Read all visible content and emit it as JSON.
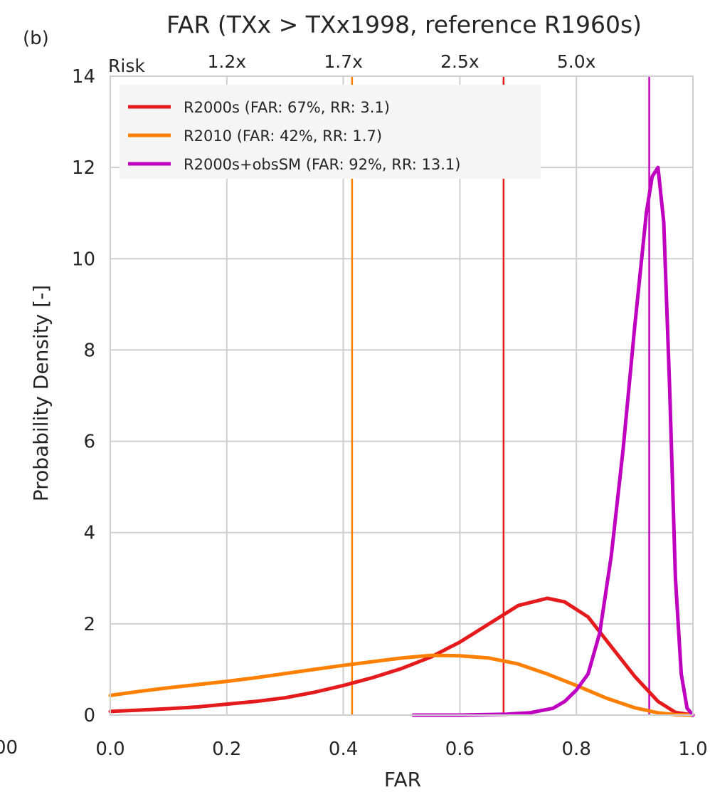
{
  "panel_label": "(b)",
  "chart_data": {
    "type": "line",
    "title": "FAR (TXx > TXx1998, reference R1960s)",
    "xlabel": "FAR",
    "ylabel": "Probability Density [-]",
    "xlim": [
      0.0,
      1.0
    ],
    "ylim": [
      0,
      14
    ],
    "grid": true,
    "legend_position": "top-left",
    "x_ticks": [
      {
        "value": 0.0,
        "label": "0.0"
      },
      {
        "value": 0.2,
        "label": "0.2"
      },
      {
        "value": 0.4,
        "label": "0.4"
      },
      {
        "value": 0.6,
        "label": "0.6"
      },
      {
        "value": 0.8,
        "label": "0.8"
      },
      {
        "value": 1.0,
        "label": "1.0"
      }
    ],
    "clipped_tick_label": "00",
    "y_ticks": [
      {
        "value": 0,
        "label": "0"
      },
      {
        "value": 2,
        "label": "2"
      },
      {
        "value": 4,
        "label": "4"
      },
      {
        "value": 6,
        "label": "6"
      },
      {
        "value": 8,
        "label": "8"
      },
      {
        "value": 10,
        "label": "10"
      },
      {
        "value": 12,
        "label": "12"
      },
      {
        "value": 14,
        "label": "14"
      }
    ],
    "top_axis": {
      "label": "Risk",
      "ticks": [
        {
          "far": 0.2,
          "label": "1.2x"
        },
        {
          "far": 0.4,
          "label": "1.7x"
        },
        {
          "far": 0.6,
          "label": "2.5x"
        },
        {
          "far": 0.8,
          "label": "5.0x"
        }
      ]
    },
    "series": [
      {
        "name": "R2000s (FAR: 67%, RR: 3.1)",
        "color": "#e41a1c",
        "vline": 0.675,
        "points": [
          [
            0.0,
            0.08
          ],
          [
            0.05,
            0.11
          ],
          [
            0.1,
            0.14
          ],
          [
            0.15,
            0.18
          ],
          [
            0.2,
            0.24
          ],
          [
            0.25,
            0.3
          ],
          [
            0.3,
            0.38
          ],
          [
            0.35,
            0.5
          ],
          [
            0.4,
            0.65
          ],
          [
            0.45,
            0.82
          ],
          [
            0.5,
            1.02
          ],
          [
            0.55,
            1.27
          ],
          [
            0.6,
            1.6
          ],
          [
            0.65,
            2.0
          ],
          [
            0.7,
            2.4
          ],
          [
            0.75,
            2.56
          ],
          [
            0.78,
            2.48
          ],
          [
            0.82,
            2.15
          ],
          [
            0.86,
            1.5
          ],
          [
            0.9,
            0.85
          ],
          [
            0.94,
            0.3
          ],
          [
            0.97,
            0.06
          ],
          [
            1.0,
            0.0
          ]
        ]
      },
      {
        "name": "R2010 (FAR: 42%, RR: 1.7)",
        "color": "#ff8000",
        "vline": 0.415,
        "points": [
          [
            0.0,
            0.43
          ],
          [
            0.05,
            0.52
          ],
          [
            0.1,
            0.6
          ],
          [
            0.15,
            0.67
          ],
          [
            0.2,
            0.74
          ],
          [
            0.25,
            0.82
          ],
          [
            0.3,
            0.91
          ],
          [
            0.35,
            1.0
          ],
          [
            0.4,
            1.09
          ],
          [
            0.45,
            1.17
          ],
          [
            0.5,
            1.25
          ],
          [
            0.55,
            1.31
          ],
          [
            0.6,
            1.3
          ],
          [
            0.65,
            1.25
          ],
          [
            0.7,
            1.12
          ],
          [
            0.75,
            0.9
          ],
          [
            0.8,
            0.65
          ],
          [
            0.85,
            0.38
          ],
          [
            0.9,
            0.16
          ],
          [
            0.94,
            0.05
          ],
          [
            0.97,
            0.01
          ],
          [
            1.0,
            0.0
          ]
        ]
      },
      {
        "name": "R2000s+obsSM (FAR: 92%, RR: 13.1)",
        "color": "#c000c0",
        "vline": 0.925,
        "points": [
          [
            0.52,
            0.0
          ],
          [
            0.6,
            0.0
          ],
          [
            0.68,
            0.02
          ],
          [
            0.72,
            0.05
          ],
          [
            0.76,
            0.15
          ],
          [
            0.78,
            0.3
          ],
          [
            0.8,
            0.55
          ],
          [
            0.82,
            0.9
          ],
          [
            0.84,
            1.8
          ],
          [
            0.86,
            3.5
          ],
          [
            0.88,
            5.8
          ],
          [
            0.9,
            8.5
          ],
          [
            0.92,
            11.0
          ],
          [
            0.93,
            11.8
          ],
          [
            0.94,
            12.0
          ],
          [
            0.95,
            10.8
          ],
          [
            0.96,
            7.2
          ],
          [
            0.97,
            3.0
          ],
          [
            0.98,
            0.9
          ],
          [
            0.99,
            0.15
          ],
          [
            1.0,
            0.0
          ]
        ]
      }
    ]
  }
}
